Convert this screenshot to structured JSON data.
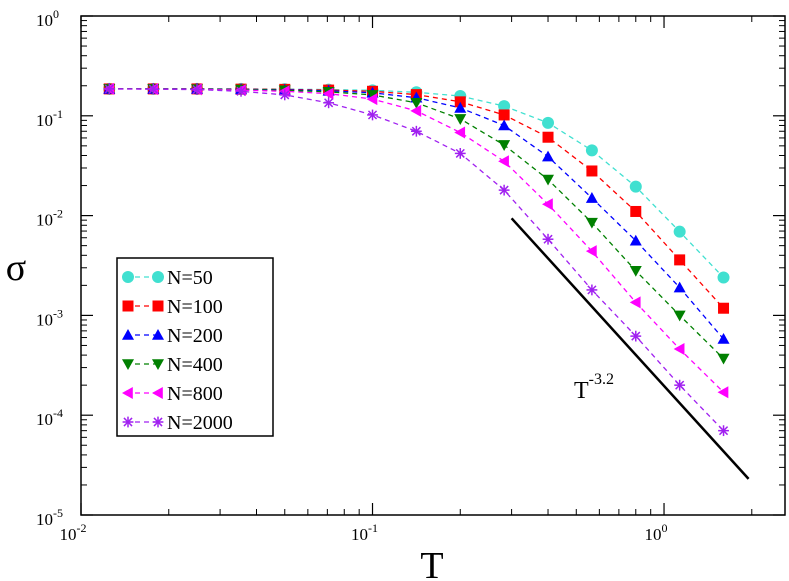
{
  "chart_data": {
    "type": "line",
    "title": "",
    "xlabel": "T",
    "ylabel": "σ",
    "xscale": "log",
    "yscale": "log",
    "xlim": [
      0.01,
      2.6
    ],
    "ylim": [
      1e-05,
      1
    ],
    "grid": false,
    "legend_position": "bottom-left",
    "x_ticks": [
      {
        "value": 0.01,
        "base": "10",
        "exp": "-2"
      },
      {
        "value": 0.1,
        "base": "10",
        "exp": "-1"
      },
      {
        "value": 1,
        "base": "10",
        "exp": "0"
      }
    ],
    "y_ticks": [
      {
        "value": 1,
        "base": "10",
        "exp": "0"
      },
      {
        "value": 0.1,
        "base": "10",
        "exp": "-1"
      },
      {
        "value": 0.01,
        "base": "10",
        "exp": "-2"
      },
      {
        "value": 0.001,
        "base": "10",
        "exp": "-3"
      },
      {
        "value": 0.0001,
        "base": "10",
        "exp": "-4"
      },
      {
        "value": 1e-05,
        "base": "10",
        "exp": "-5"
      }
    ],
    "x": [
      0.0125,
      0.0177,
      0.025,
      0.0354,
      0.05,
      0.0707,
      0.1,
      0.1414,
      0.2,
      0.2828,
      0.4,
      0.5657,
      0.8,
      1.1314,
      1.6
    ],
    "series": [
      {
        "name": "N=50",
        "color": "#40e0d0",
        "marker": "circle",
        "values": [
          0.186,
          0.186,
          0.186,
          0.186,
          0.185,
          0.183,
          0.18,
          0.172,
          0.158,
          0.125,
          0.085,
          0.045,
          0.0195,
          0.0069,
          0.0024
        ]
      },
      {
        "name": "N=100",
        "color": "#ff0000",
        "marker": "square",
        "values": [
          0.186,
          0.186,
          0.186,
          0.185,
          0.184,
          0.181,
          0.176,
          0.163,
          0.138,
          0.102,
          0.061,
          0.028,
          0.011,
          0.0036,
          0.00118
        ]
      },
      {
        "name": "N=200",
        "color": "#0000ff",
        "marker": "triangle-up",
        "values": [
          0.186,
          0.186,
          0.186,
          0.184,
          0.182,
          0.178,
          0.17,
          0.152,
          0.12,
          0.08,
          0.039,
          0.015,
          0.0056,
          0.0019,
          0.00058
        ]
      },
      {
        "name": "N=400",
        "color": "#008000",
        "marker": "triangle-down",
        "values": [
          0.186,
          0.186,
          0.185,
          0.183,
          0.18,
          0.174,
          0.162,
          0.135,
          0.093,
          0.051,
          0.023,
          0.0085,
          0.0028,
          0.001,
          0.00037
        ]
      },
      {
        "name": "N=800",
        "color": "#ff00ff",
        "marker": "triangle-left",
        "values": [
          0.186,
          0.185,
          0.184,
          0.181,
          0.176,
          0.167,
          0.147,
          0.112,
          0.068,
          0.035,
          0.013,
          0.0044,
          0.00135,
          0.00046,
          0.00017
        ]
      },
      {
        "name": "N=2000",
        "color": "#a020f0",
        "marker": "asterisk",
        "values": [
          0.186,
          0.185,
          0.183,
          0.176,
          0.162,
          0.135,
          0.102,
          0.07,
          0.042,
          0.018,
          0.0058,
          0.0018,
          0.00062,
          0.0002,
          7e-05
        ]
      }
    ],
    "reference_line": {
      "label_base": "T",
      "label_exp": "-3.2",
      "color": "#000000",
      "x": [
        0.3,
        1.95
      ],
      "y": [
        0.0094,
        2.3e-05
      ]
    }
  }
}
